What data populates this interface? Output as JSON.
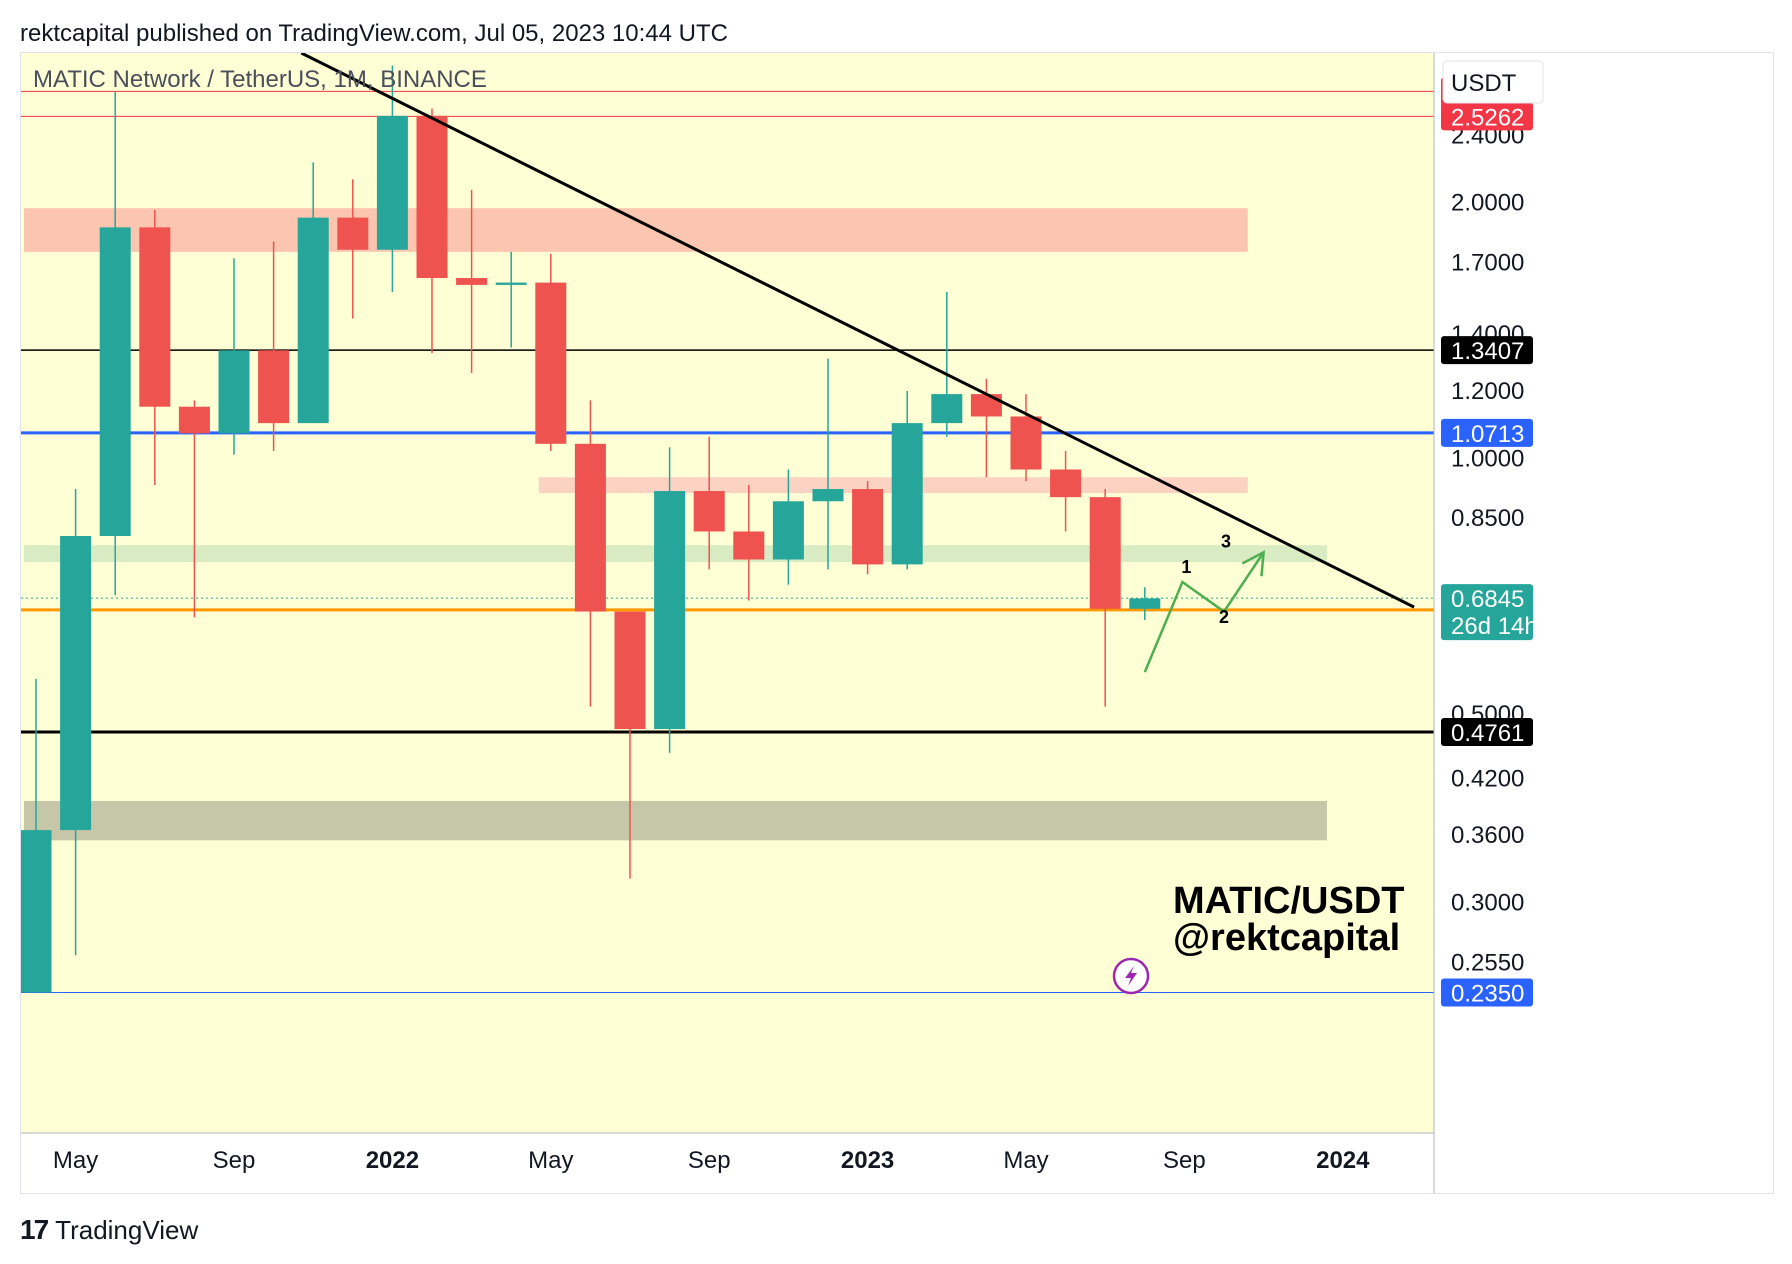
{
  "header": {
    "text": "rektcapital published on TradingView.com, Jul 05, 2023 10:44 UTC"
  },
  "footer": {
    "logo_glyph": "17",
    "brand": "TradingView"
  },
  "chart_data": {
    "type": "candlestick",
    "title": "MATIC Network / TetherUS, 1M, BINANCE",
    "currency": "USDT",
    "y_scale": "log",
    "ylim": [
      0.235,
      3.0
    ],
    "price_ticks": [
      {
        "v": 2.4,
        "label": "2.4000"
      },
      {
        "v": 2.0,
        "label": "2.0000"
      },
      {
        "v": 1.7,
        "label": "1.7000"
      },
      {
        "v": 1.4,
        "label": "1.4000"
      },
      {
        "v": 1.2,
        "label": "1.2000"
      },
      {
        "v": 1.0,
        "label": "1.0000"
      },
      {
        "v": 0.85,
        "label": "0.8500"
      },
      {
        "v": 0.5,
        "label": "0.5000"
      },
      {
        "v": 0.42,
        "label": "0.4200"
      },
      {
        "v": 0.36,
        "label": "0.3600"
      },
      {
        "v": 0.3,
        "label": "0.3000"
      },
      {
        "v": 0.255,
        "label": "0.2550"
      }
    ],
    "time_labels": [
      {
        "i": 1,
        "label": "May",
        "bold": false
      },
      {
        "i": 5,
        "label": "Sep",
        "bold": false
      },
      {
        "i": 9,
        "label": "2022",
        "bold": true
      },
      {
        "i": 13,
        "label": "May",
        "bold": false
      },
      {
        "i": 17,
        "label": "Sep",
        "bold": false
      },
      {
        "i": 21,
        "label": "2023",
        "bold": true
      },
      {
        "i": 25,
        "label": "May",
        "bold": false
      },
      {
        "i": 29,
        "label": "Sep",
        "bold": false
      },
      {
        "i": 33,
        "label": "2024",
        "bold": true
      }
    ],
    "candles": [
      {
        "date": "2021-03",
        "o": 0.235,
        "h": 0.55,
        "l": 0.235,
        "c": 0.365
      },
      {
        "date": "2021-04",
        "o": 0.365,
        "h": 0.92,
        "l": 0.26,
        "c": 0.81
      },
      {
        "date": "2021-05",
        "o": 0.81,
        "h": 2.7,
        "l": 0.69,
        "c": 1.87
      },
      {
        "date": "2021-06",
        "o": 1.87,
        "h": 1.96,
        "l": 0.93,
        "c": 1.15
      },
      {
        "date": "2021-07",
        "o": 1.15,
        "h": 1.17,
        "l": 0.65,
        "c": 1.07
      },
      {
        "date": "2021-08",
        "o": 1.07,
        "h": 1.72,
        "l": 1.01,
        "c": 1.34
      },
      {
        "date": "2021-09",
        "o": 1.34,
        "h": 1.8,
        "l": 1.02,
        "c": 1.1
      },
      {
        "date": "2021-10",
        "o": 1.1,
        "h": 2.23,
        "l": 1.1,
        "c": 1.92
      },
      {
        "date": "2021-11",
        "o": 1.92,
        "h": 2.13,
        "l": 1.46,
        "c": 1.76
      },
      {
        "date": "2021-12",
        "o": 1.76,
        "h": 2.9,
        "l": 1.57,
        "c": 2.53
      },
      {
        "date": "2022-01",
        "o": 2.53,
        "h": 2.58,
        "l": 1.33,
        "c": 1.63
      },
      {
        "date": "2022-02",
        "o": 1.63,
        "h": 2.07,
        "l": 1.26,
        "c": 1.6
      },
      {
        "date": "2022-03",
        "o": 1.6,
        "h": 1.75,
        "l": 1.35,
        "c": 1.61
      },
      {
        "date": "2022-04",
        "o": 1.61,
        "h": 1.74,
        "l": 1.02,
        "c": 1.04
      },
      {
        "date": "2022-05",
        "o": 1.04,
        "h": 1.17,
        "l": 0.51,
        "c": 0.66
      },
      {
        "date": "2022-06",
        "o": 0.66,
        "h": 0.66,
        "l": 0.32,
        "c": 0.48
      },
      {
        "date": "2022-07",
        "o": 0.48,
        "h": 1.03,
        "l": 0.45,
        "c": 0.915
      },
      {
        "date": "2022-08",
        "o": 0.915,
        "h": 1.06,
        "l": 0.74,
        "c": 0.82
      },
      {
        "date": "2022-09",
        "o": 0.82,
        "h": 0.93,
        "l": 0.68,
        "c": 0.76
      },
      {
        "date": "2022-10",
        "o": 0.76,
        "h": 0.97,
        "l": 0.71,
        "c": 0.89
      },
      {
        "date": "2022-11",
        "o": 0.89,
        "h": 1.31,
        "l": 0.74,
        "c": 0.92
      },
      {
        "date": "2022-12",
        "o": 0.92,
        "h": 0.94,
        "l": 0.73,
        "c": 0.75
      },
      {
        "date": "2023-01",
        "o": 0.75,
        "h": 1.2,
        "l": 0.74,
        "c": 1.1
      },
      {
        "date": "2023-02",
        "o": 1.1,
        "h": 1.57,
        "l": 1.06,
        "c": 1.19
      },
      {
        "date": "2023-03",
        "o": 1.19,
        "h": 1.24,
        "l": 0.95,
        "c": 1.12
      },
      {
        "date": "2023-04",
        "o": 1.12,
        "h": 1.19,
        "l": 0.94,
        "c": 0.97
      },
      {
        "date": "2023-05",
        "o": 0.97,
        "h": 1.02,
        "l": 0.82,
        "c": 0.9
      },
      {
        "date": "2023-06",
        "o": 0.9,
        "h": 0.92,
        "l": 0.51,
        "c": 0.665
      },
      {
        "date": "2023-07",
        "o": 0.665,
        "h": 0.705,
        "l": 0.645,
        "c": 0.684
      }
    ],
    "levels": [
      {
        "v": 2.7034,
        "label": "2.7034",
        "color": "#f23645",
        "width": 1
      },
      {
        "v": 2.5262,
        "label": "2.5262",
        "color": "#f23645",
        "width": 1
      },
      {
        "v": 1.3407,
        "label": "1.3407",
        "color": "#000000",
        "width": 1.5
      },
      {
        "v": 1.0713,
        "label": "1.0713",
        "color": "#2962ff",
        "width": 3
      },
      {
        "v": 0.663,
        "label": "0.6630",
        "color": "#ff9800",
        "width": 3
      },
      {
        "v": 0.4761,
        "label": "0.4761",
        "color": "#000000",
        "width": 3
      },
      {
        "v": 0.235,
        "label": "0.2350",
        "color": "#2962ff",
        "width": 1
      }
    ],
    "current_price": {
      "v": 0.6845,
      "label": "0.6845",
      "countdown": "26d 14h",
      "color": "#26a69a"
    },
    "zones": [
      {
        "from_i": 0,
        "to_i": 30.6,
        "lo": 1.75,
        "hi": 1.97,
        "color": "#fcc5b0"
      },
      {
        "from_i": 13,
        "to_i": 30.6,
        "lo": 0.91,
        "hi": 0.95,
        "color": "#fcd3c2"
      },
      {
        "from_i": 0,
        "to_i": 32.6,
        "lo": 0.755,
        "hi": 0.79,
        "color": "#d9ebc2"
      },
      {
        "from_i": 0,
        "to_i": 32.6,
        "lo": 0.355,
        "hi": 0.395,
        "color": "#c6c6a8"
      }
    ],
    "trendline": {
      "from": {
        "i": 6.7,
        "v": 3.0
      },
      "to": {
        "i": 34.8,
        "v": 0.668
      },
      "color": "#000000"
    },
    "projection": {
      "points": [
        {
          "i": 28.0,
          "v": 0.56
        },
        {
          "i": 28.95,
          "v": 0.715
        },
        {
          "i": 30.0,
          "v": 0.66
        },
        {
          "i": 31.0,
          "v": 0.775
        }
      ],
      "labels": [
        {
          "text": "1",
          "i": 29.05,
          "v": 0.733
        },
        {
          "text": "2",
          "i": 30.0,
          "v": 0.64
        },
        {
          "text": "3",
          "i": 30.05,
          "v": 0.785
        }
      ],
      "color": "#4caf50"
    },
    "watermark": [
      "MATIC/USDT",
      "@rektcapital"
    ],
    "colors": {
      "up": "#26a69a",
      "down": "#ef5350",
      "background": "#ffffd6"
    }
  }
}
